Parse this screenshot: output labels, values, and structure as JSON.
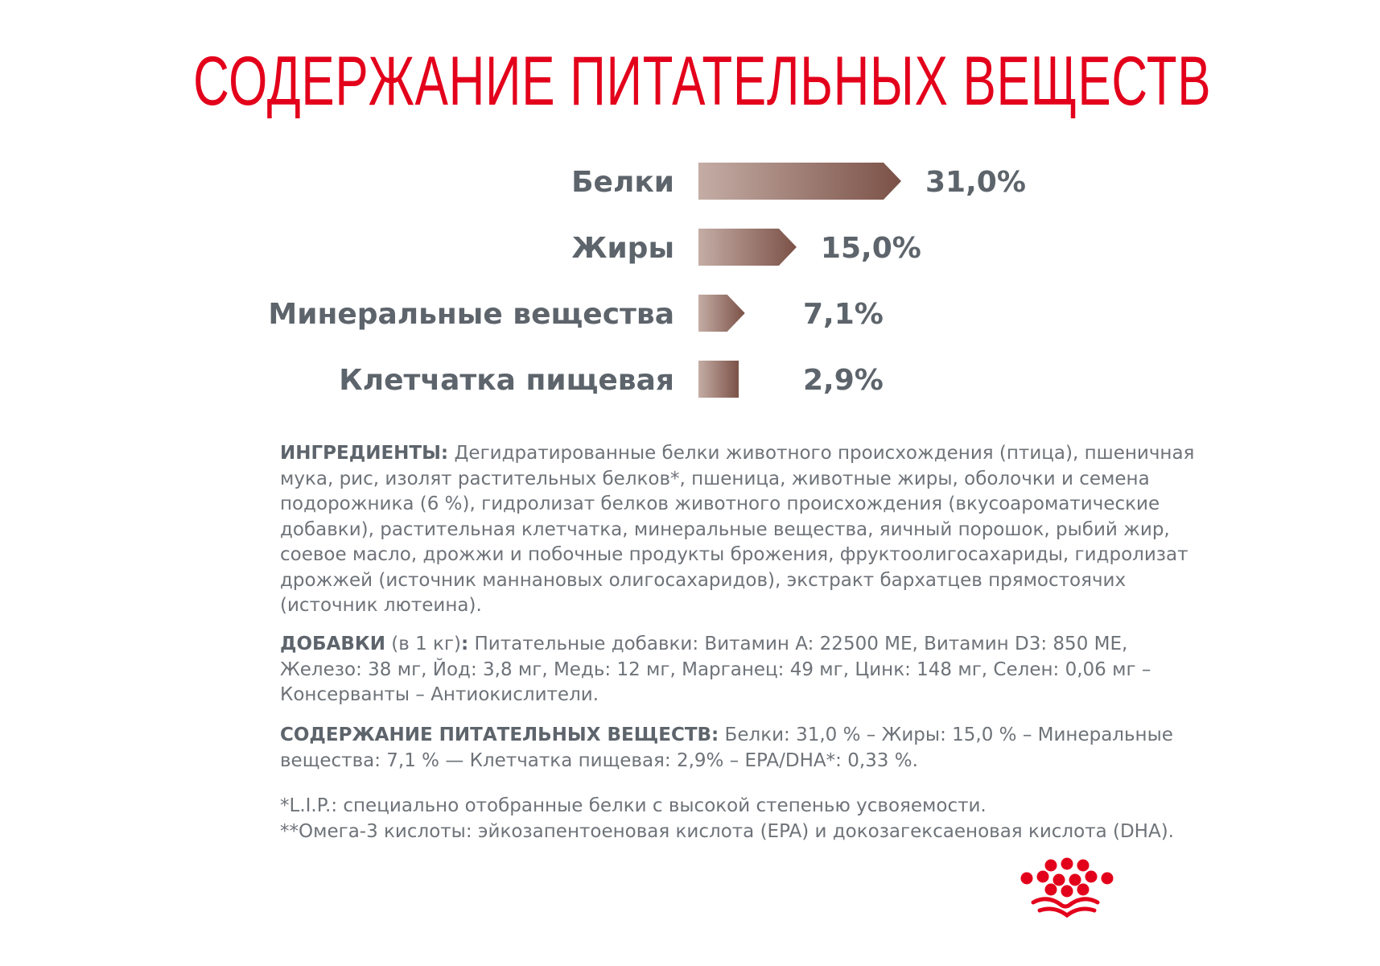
{
  "title": "СОДЕРЖАНИЕ ПИТАТЕЛЬНЫХ ВЕЩЕСТВ",
  "chart_data": {
    "type": "bar",
    "orientation": "horizontal",
    "categories": [
      "Белки",
      "Жиры",
      "Минеральные вещества",
      "Клетчатка пищевая"
    ],
    "values": [
      31.0,
      15.0,
      7.1,
      2.9
    ],
    "value_labels": [
      "31,0%",
      "15,0%",
      "7,1%",
      "2,9%"
    ],
    "unit": "%",
    "title": "",
    "xlabel": "",
    "ylabel": "",
    "grid": false,
    "colors": {
      "gradient_start": "#c4ada5",
      "gradient_end": "#7b5147"
    }
  },
  "ingredients": {
    "label": "ИНГРЕДИЕНТЫ:",
    "text": " Дегидратированные белки животного происхождения (птица), пшеничная мука, рис, изолят растительных белков*, пшеница, животные жиры, оболочки и семена подорожника (6 %), гидролизат белков животного происхождения (вкусоароматические добавки), растительная клетчатка, минеральные вещества, яичный порошок, рыбий жир, соевое масло, дрожжи и побочные продукты брожения, фруктоолигосахариды, гидролизат дрожжей (источник маннановых олигосахаридов), экстракт бархатцев прямостоячих (источник лютеина)."
  },
  "additives": {
    "label": "ДОБАВКИ",
    "qualifier": " (в 1 кг)",
    "colon": ":",
    "text": " Питательные добавки: Витамин A: 22500 МЕ, Витамин D3: 850 МЕ, Железо: 38 мг, Йод: 3,8 мг, Медь: 12 мг, Марганец: 49 мг, Цинк: 148 мг, Селен: 0,06 мг – Консерванты – Антиокислители."
  },
  "nutrients": {
    "label": "СОДЕРЖАНИЕ ПИТАТЕЛЬНЫХ ВЕЩЕСТВ:",
    "text": " Белки: 31,0 % – Жиры: 15,0 % – Минеральные вещества: 7,1 % — Клетчатка пищевая: 2,9% – EPA/DHA*: 0,33 %."
  },
  "footnotes": [
    "*L.I.P.: специально отобранные белки с высокой степенью усвояемости.",
    "**Омега-3 кислоты: эйкозапентоеновая кислота (EPA) и докозагексаеновая кислота (DHA)."
  ],
  "logo": {
    "icon": "royal-canin-crown-icon",
    "color": "#e3001b"
  }
}
